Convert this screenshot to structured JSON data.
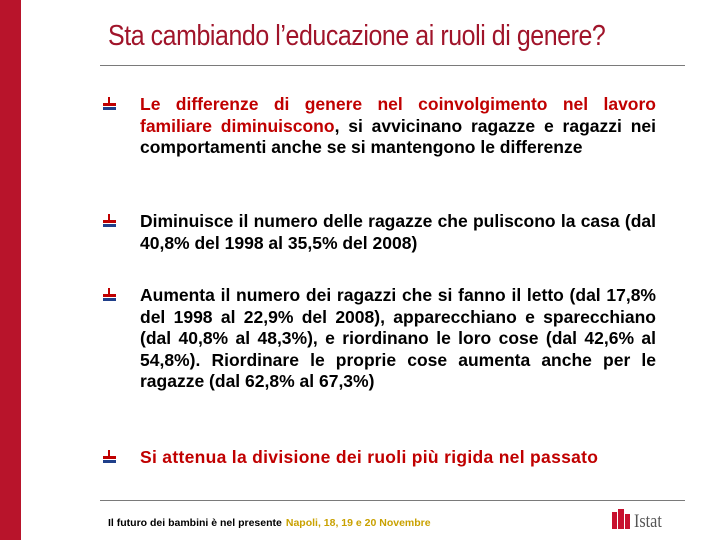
{
  "slide": {
    "title": "Sta cambiando l’educazione ai ruoli di genere?",
    "bullets": [
      {
        "emphasis": "Le differenze di genere nel coinvolgimento nel lavoro familiare diminuiscono",
        "text": ", si avvicinano ragazze e ragazzi nei comportamenti anche se si mantengono le differenze"
      },
      {
        "text": "Diminuisce il numero delle ragazze che puliscono la casa (dal 40,8% del 1998 al 35,5% del 2008)"
      },
      {
        "text": "Aumenta il numero dei ragazzi che si fanno il letto (dal 17,8% del 1998 al 22,9% del 2008), apparecchiano e sparecchiano (dal 40,8% al 48,3%), e riordinano le loro cose (dal 42,6% al 54,8%). Riordinare le proprie cose aumenta anche per le ragazze (dal 62,8% al 67,3%)"
      },
      {
        "text": "Si attenua la divisione dei ruoli più rigida nel passato"
      }
    ]
  },
  "footer": {
    "event": "Il futuro dei bambini è nel presente",
    "place_date": "Napoli, 18, 19 e 20 Novembre"
  },
  "logo": {
    "name": "Istat",
    "icon": "istat-logo-icon"
  },
  "colors": {
    "accent": "#b8142b",
    "title": "#a0142a",
    "emphasis": "#c00000",
    "footer_highlight": "#c9a100"
  },
  "icons": {
    "bullet": "bullet-bars-icon"
  }
}
